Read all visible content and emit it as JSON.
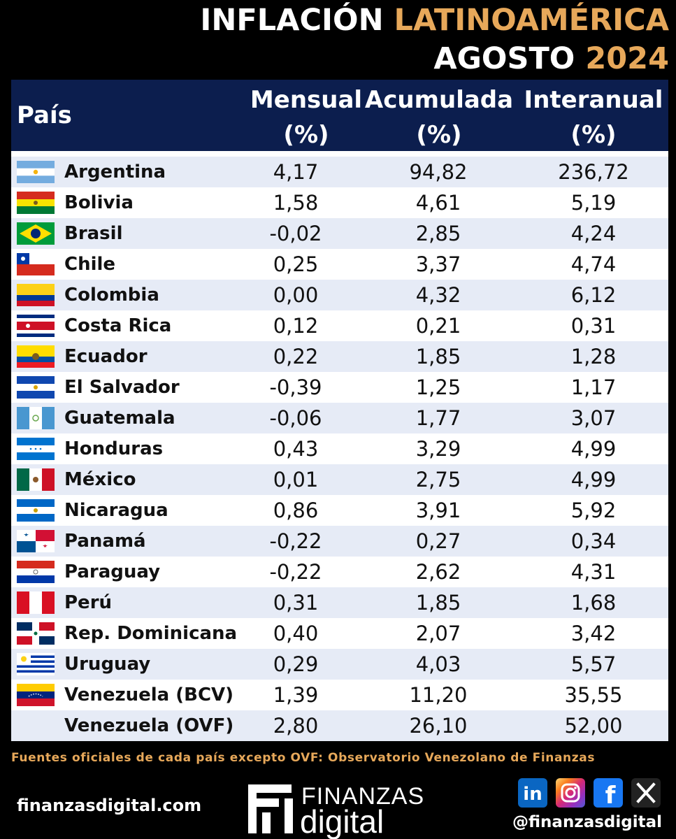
{
  "title": {
    "line1_white": "INFLACIÓN",
    "line1_gold": "LATINOAMÉRICA",
    "line2_white": "AGOSTO",
    "line2_gold": "2024"
  },
  "colors": {
    "header_bg": "#0c1e4e",
    "gold": "#e7a85a",
    "row_alt": "#e6ebf6"
  },
  "chart_data": {
    "type": "table",
    "columns": [
      {
        "line1": "País",
        "line2": ""
      },
      {
        "line1": "Mensual",
        "line2": "(%)"
      },
      {
        "line1": "Acumulada",
        "line2": "(%)"
      },
      {
        "line1": "Interanual",
        "line2": "(%)"
      }
    ],
    "rows": [
      {
        "flag": "argentina-flag",
        "country": "Argentina",
        "values": [
          "4,17",
          "94,82",
          "236,72"
        ]
      },
      {
        "flag": "bolivia-flag",
        "country": "Bolivia",
        "values": [
          "1,58",
          "4,61",
          "5,19"
        ]
      },
      {
        "flag": "brazil-flag",
        "country": "Brasil",
        "values": [
          "-0,02",
          "2,85",
          "4,24"
        ]
      },
      {
        "flag": "chile-flag",
        "country": "Chile",
        "values": [
          "0,25",
          "3,37",
          "4,74"
        ]
      },
      {
        "flag": "colombia-flag",
        "country": "Colombia",
        "values": [
          "0,00",
          "4,32",
          "6,12"
        ]
      },
      {
        "flag": "costa-rica-flag",
        "country": "Costa Rica",
        "values": [
          "0,12",
          "0,21",
          "0,31"
        ]
      },
      {
        "flag": "ecuador-flag",
        "country": "Ecuador",
        "values": [
          "0,22",
          "1,85",
          "1,28"
        ]
      },
      {
        "flag": "el-salvador-flag",
        "country": "El Salvador",
        "values": [
          "-0,39",
          "1,25",
          "1,17"
        ]
      },
      {
        "flag": "guatemala-flag",
        "country": "Guatemala",
        "values": [
          "-0,06",
          "1,77",
          "3,07"
        ]
      },
      {
        "flag": "honduras-flag",
        "country": "Honduras",
        "values": [
          "0,43",
          "3,29",
          "4,99"
        ]
      },
      {
        "flag": "mexico-flag",
        "country": "México",
        "values": [
          "0,01",
          "2,75",
          "4,99"
        ]
      },
      {
        "flag": "nicaragua-flag",
        "country": "Nicaragua",
        "values": [
          "0,86",
          "3,91",
          "5,92"
        ]
      },
      {
        "flag": "panama-flag",
        "country": "Panamá",
        "values": [
          "-0,22",
          "0,27",
          "0,34"
        ]
      },
      {
        "flag": "paraguay-flag",
        "country": "Paraguay",
        "values": [
          "-0,22",
          "2,62",
          "4,31"
        ]
      },
      {
        "flag": "peru-flag",
        "country": "Perú",
        "values": [
          "0,31",
          "1,85",
          "1,68"
        ]
      },
      {
        "flag": "dominican-republic-flag",
        "country": "Rep. Dominicana",
        "values": [
          "0,40",
          "2,07",
          "3,42"
        ]
      },
      {
        "flag": "uruguay-flag",
        "country": "Uruguay",
        "values": [
          "0,29",
          "4,03",
          "5,57"
        ]
      },
      {
        "flag": "venezuela-flag",
        "country": "Venezuela (BCV)",
        "values": [
          "1,39",
          "11,20",
          "35,55"
        ]
      },
      {
        "flag": "",
        "country": "Venezuela (OVF)",
        "values": [
          "2,80",
          "26,10",
          "52,00"
        ]
      }
    ]
  },
  "footer": {
    "source": "Fuentes oficiales de cada país excepto OVF: Observatorio Venezolano de Finanzas",
    "site": "finanzasdigital.com",
    "logo_top": "FINANZAS",
    "logo_bottom": "digital",
    "handle": "@finanzasdigital",
    "social_icons": [
      "linkedin-icon",
      "instagram-icon",
      "facebook-icon",
      "x-icon"
    ]
  }
}
